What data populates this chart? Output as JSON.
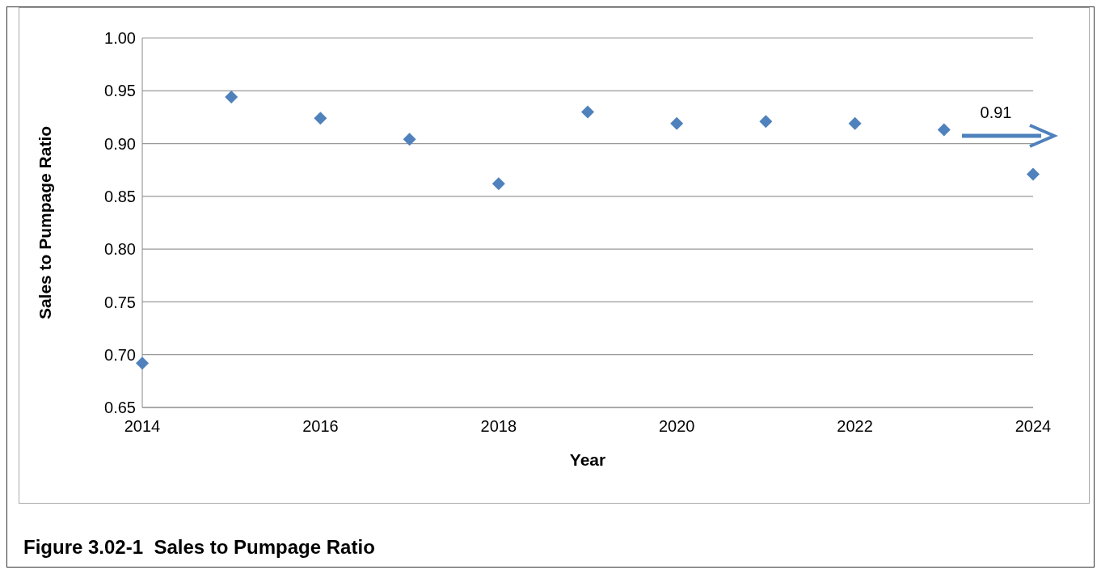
{
  "chart_data": {
    "type": "scatter",
    "title": "Figure 3.02-1  Sales to Pumpage Ratio",
    "xlabel": "Year",
    "ylabel": "Sales to Pumpage Ratio",
    "x": [
      2014,
      2015,
      2016,
      2017,
      2018,
      2019,
      2020,
      2021,
      2022,
      2023,
      2024
    ],
    "values": [
      0.692,
      0.944,
      0.924,
      0.904,
      0.862,
      0.93,
      0.919,
      0.921,
      0.919,
      0.913,
      0.871
    ],
    "color": "#4f81bd",
    "marker": "diamond",
    "grid": "y",
    "xlim": [
      2014,
      2024
    ],
    "xticks": [
      2014,
      2016,
      2018,
      2020,
      2022,
      2024
    ],
    "ylim": [
      0.65,
      1.0
    ],
    "yticks": [
      {
        "value": 0.65,
        "label": "0.65"
      },
      {
        "value": 0.7,
        "label": "0.70"
      },
      {
        "value": 0.75,
        "label": "0.75"
      },
      {
        "value": 0.8,
        "label": "0.80"
      },
      {
        "value": 0.85,
        "label": "0.85"
      },
      {
        "value": 0.9,
        "label": "0.90"
      },
      {
        "value": 0.95,
        "label": "0.95"
      },
      {
        "value": 1.0,
        "label": "1.00"
      }
    ],
    "annotations": [
      "0.91"
    ]
  }
}
